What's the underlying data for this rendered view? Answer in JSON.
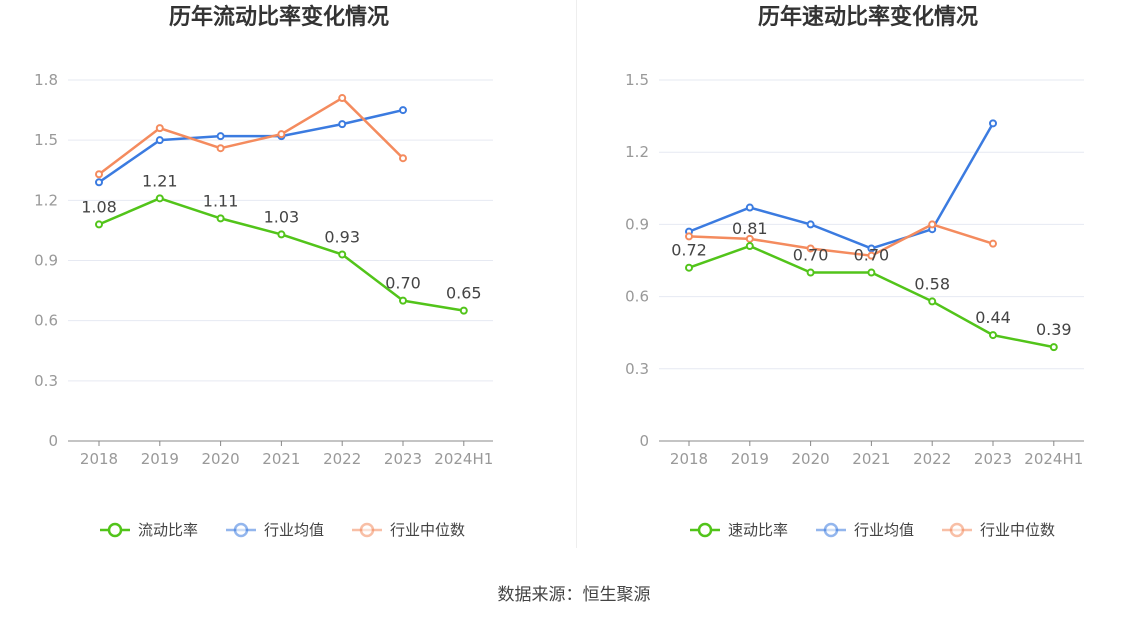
{
  "source": "数据来源：恒生聚源",
  "chart_data": [
    {
      "type": "line",
      "title": "历年流动比率变化情况",
      "categories": [
        "2018",
        "2019",
        "2020",
        "2021",
        "2022",
        "2023",
        "2024H1"
      ],
      "ylim": [
        0,
        1.8
      ],
      "yticks": [
        "0",
        "0.3",
        "0.6",
        "0.9",
        "1.2",
        "1.5",
        "1.8"
      ],
      "grid": true,
      "legend_position": "bottom",
      "series": [
        {
          "name": "流动比率",
          "color": "#52c41a",
          "labeled": true,
          "labels": [
            "1.08",
            "1.21",
            "1.11",
            "1.03",
            "0.93",
            "0.70",
            "0.65"
          ],
          "values": [
            1.08,
            1.21,
            1.11,
            1.03,
            0.93,
            0.7,
            0.65
          ]
        },
        {
          "name": "行业均值",
          "color": "#3b7be0",
          "labeled": false,
          "values": [
            1.29,
            1.5,
            1.52,
            1.52,
            1.58,
            1.65,
            null
          ]
        },
        {
          "name": "行业中位数",
          "color": "#f48b5e",
          "labeled": false,
          "values": [
            1.33,
            1.56,
            1.46,
            1.53,
            1.71,
            1.41,
            null
          ]
        }
      ]
    },
    {
      "type": "line",
      "title": "历年速动比率变化情况",
      "categories": [
        "2018",
        "2019",
        "2020",
        "2021",
        "2022",
        "2023",
        "2024H1"
      ],
      "ylim": [
        0,
        1.5
      ],
      "yticks": [
        "0",
        "0.3",
        "0.6",
        "0.9",
        "1.2",
        "1.5"
      ],
      "grid": true,
      "legend_position": "bottom",
      "series": [
        {
          "name": "速动比率",
          "color": "#52c41a",
          "labeled": true,
          "labels": [
            "0.72",
            "0.81",
            "0.70",
            "0.70",
            "0.58",
            "0.44",
            "0.39"
          ],
          "values": [
            0.72,
            0.81,
            0.7,
            0.7,
            0.58,
            0.44,
            0.39
          ]
        },
        {
          "name": "行业均值",
          "color": "#3b7be0",
          "labeled": false,
          "values": [
            0.87,
            0.97,
            0.9,
            0.8,
            0.88,
            1.32,
            null
          ]
        },
        {
          "name": "行业中位数",
          "color": "#f48b5e",
          "labeled": false,
          "values": [
            0.85,
            0.84,
            0.8,
            0.77,
            0.9,
            0.82,
            null
          ]
        }
      ]
    }
  ]
}
